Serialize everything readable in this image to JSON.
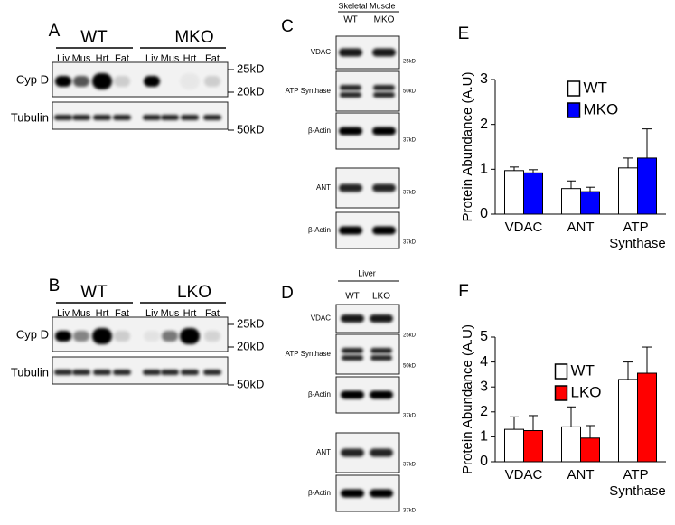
{
  "panels": {
    "A": {
      "letter": "A",
      "groups": [
        "WT",
        "MKO"
      ],
      "lanes": [
        "Liv",
        "Mus",
        "Hrt",
        "Fat",
        "Liv",
        "Mus",
        "Hrt",
        "Fat"
      ],
      "rows": [
        "Cyp D",
        "Tubulin"
      ],
      "markers": [
        "25kD",
        "20kD",
        "50kD"
      ]
    },
    "B": {
      "letter": "B",
      "groups": [
        "WT",
        "LKO"
      ],
      "lanes": [
        "Liv",
        "Mus",
        "Hrt",
        "Fat",
        "Liv",
        "Mus",
        "Hrt",
        "Fat"
      ],
      "rows": [
        "Cyp D",
        "Tubulin"
      ],
      "markers": [
        "25kD",
        "20kD",
        "50kD"
      ]
    },
    "C": {
      "letter": "C",
      "title": "Skeletal Muscle",
      "lanes": [
        "WT",
        "MKO"
      ],
      "rows": [
        "VDAC",
        "ATP Synthase",
        "β-Actin",
        "ANT",
        "β-Actin"
      ],
      "markers": [
        "25kD",
        "50kD",
        "37kD",
        "37kD",
        "37kD"
      ]
    },
    "D": {
      "letter": "D",
      "title": "Liver",
      "lanes": [
        "WT",
        "LKO"
      ],
      "rows": [
        "VDAC",
        "ATP Synthase",
        "β-Actin",
        "ANT",
        "β-Actin"
      ],
      "markers": [
        "25kD",
        "50kD",
        "37kD",
        "37kD",
        "37kD"
      ]
    }
  },
  "chart_data": [
    {
      "type": "bar",
      "label": "E",
      "ylabel": "Protein Abundance (A.U)",
      "categories": [
        "VDAC",
        "ANT",
        "ATP Synthase"
      ],
      "series": [
        {
          "name": "WT",
          "color": "#ffffff",
          "values": [
            0.97,
            0.57,
            1.03
          ],
          "errors": [
            0.08,
            0.17,
            0.22
          ]
        },
        {
          "name": "MKO",
          "color": "#0000ff",
          "values": [
            0.92,
            0.5,
            1.25
          ],
          "errors": [
            0.07,
            0.1,
            0.65
          ]
        }
      ],
      "ylim": [
        0,
        3
      ],
      "yticks": [
        0,
        1,
        2,
        3
      ],
      "legend": "upper center"
    },
    {
      "type": "bar",
      "label": "F",
      "ylabel": "Protein Abundance (A.U)",
      "categories": [
        "VDAC",
        "ANT",
        "ATP Synthase"
      ],
      "series": [
        {
          "name": "WT",
          "color": "#ffffff",
          "values": [
            1.3,
            1.4,
            3.3
          ],
          "errors": [
            0.5,
            0.8,
            0.7
          ]
        },
        {
          "name": "LKO",
          "color": "#ff0000",
          "values": [
            1.25,
            0.95,
            3.55
          ],
          "errors": [
            0.6,
            0.5,
            1.05
          ]
        }
      ],
      "ylim": [
        0,
        5
      ],
      "yticks": [
        0,
        1,
        2,
        3,
        4,
        5
      ],
      "legend": "upper center"
    }
  ]
}
